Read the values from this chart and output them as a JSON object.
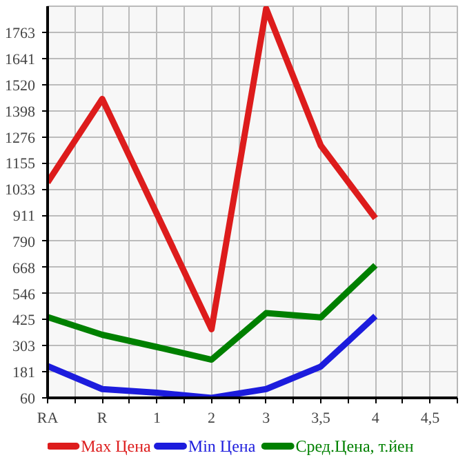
{
  "chart_data": {
    "type": "line",
    "categories": [
      "RA",
      "R",
      "1",
      "2",
      "3",
      "3,5",
      "4",
      "4,5"
    ],
    "series": [
      {
        "name": "Max Цена",
        "color": "#dd1c1c",
        "values": [
          1064,
          1453,
          917,
          380,
          1874,
          1236,
          897,
          null
        ]
      },
      {
        "name": "Min Цена",
        "color": "#1c1cdd",
        "values": [
          208,
          101,
          84,
          60,
          101,
          206,
          441,
          null
        ]
      },
      {
        "name": "Сред.Цена, т.йен",
        "color": "#008000",
        "values": [
          437,
          354,
          297,
          238,
          455,
          435,
          678,
          null
        ]
      }
    ],
    "ylim": [
      60,
      1885
    ],
    "yticks": [
      60,
      181,
      303,
      425,
      546,
      668,
      790,
      911,
      1033,
      1155,
      1276,
      1398,
      1520,
      1641,
      1763
    ],
    "grid": true,
    "legend": "bottom",
    "marker": "none",
    "line_style": "solid"
  }
}
